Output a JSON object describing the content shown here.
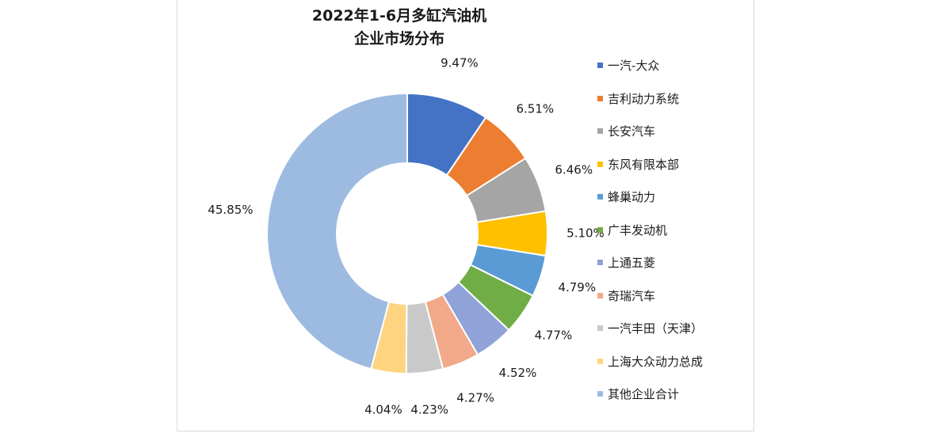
{
  "chart_data": {
    "type": "pie",
    "variant": "donut",
    "title": [
      "2022年1-6月多缸汽油机",
      "企业市场分布"
    ],
    "legend_position": "right",
    "unit": "%",
    "slices": [
      {
        "name": "一汽-大众",
        "value": 9.47,
        "label": "9.47%",
        "color": "#4472C4"
      },
      {
        "name": "吉利动力系统",
        "value": 6.51,
        "label": "6.51%",
        "color": "#ED7D31"
      },
      {
        "name": "长安汽车",
        "value": 6.46,
        "label": "6.46%",
        "color": "#A5A5A5"
      },
      {
        "name": "东风有限本部",
        "value": 5.1,
        "label": "5.10%",
        "color": "#FFC000"
      },
      {
        "name": "蜂巢动力",
        "value": 4.79,
        "label": "4.79%",
        "color": "#5B9BD5"
      },
      {
        "name": "广丰发动机",
        "value": 4.77,
        "label": "4.77%",
        "color": "#70AD47"
      },
      {
        "name": "上通五菱",
        "value": 4.52,
        "label": "4.52%",
        "color": "#8FA3D8"
      },
      {
        "name": "奇瑞汽车",
        "value": 4.27,
        "label": "4.27%",
        "color": "#F1A98A"
      },
      {
        "name": "一汽丰田（天津）",
        "value": 4.23,
        "label": "4.23%",
        "color": "#C9C9C9"
      },
      {
        "name": "上海大众动力总成",
        "value": 4.04,
        "label": "4.04%",
        "color": "#FFD480"
      },
      {
        "name": "其他企业合计",
        "value": 45.85,
        "label": "45.85%",
        "color": "#9DBBE0"
      }
    ]
  }
}
